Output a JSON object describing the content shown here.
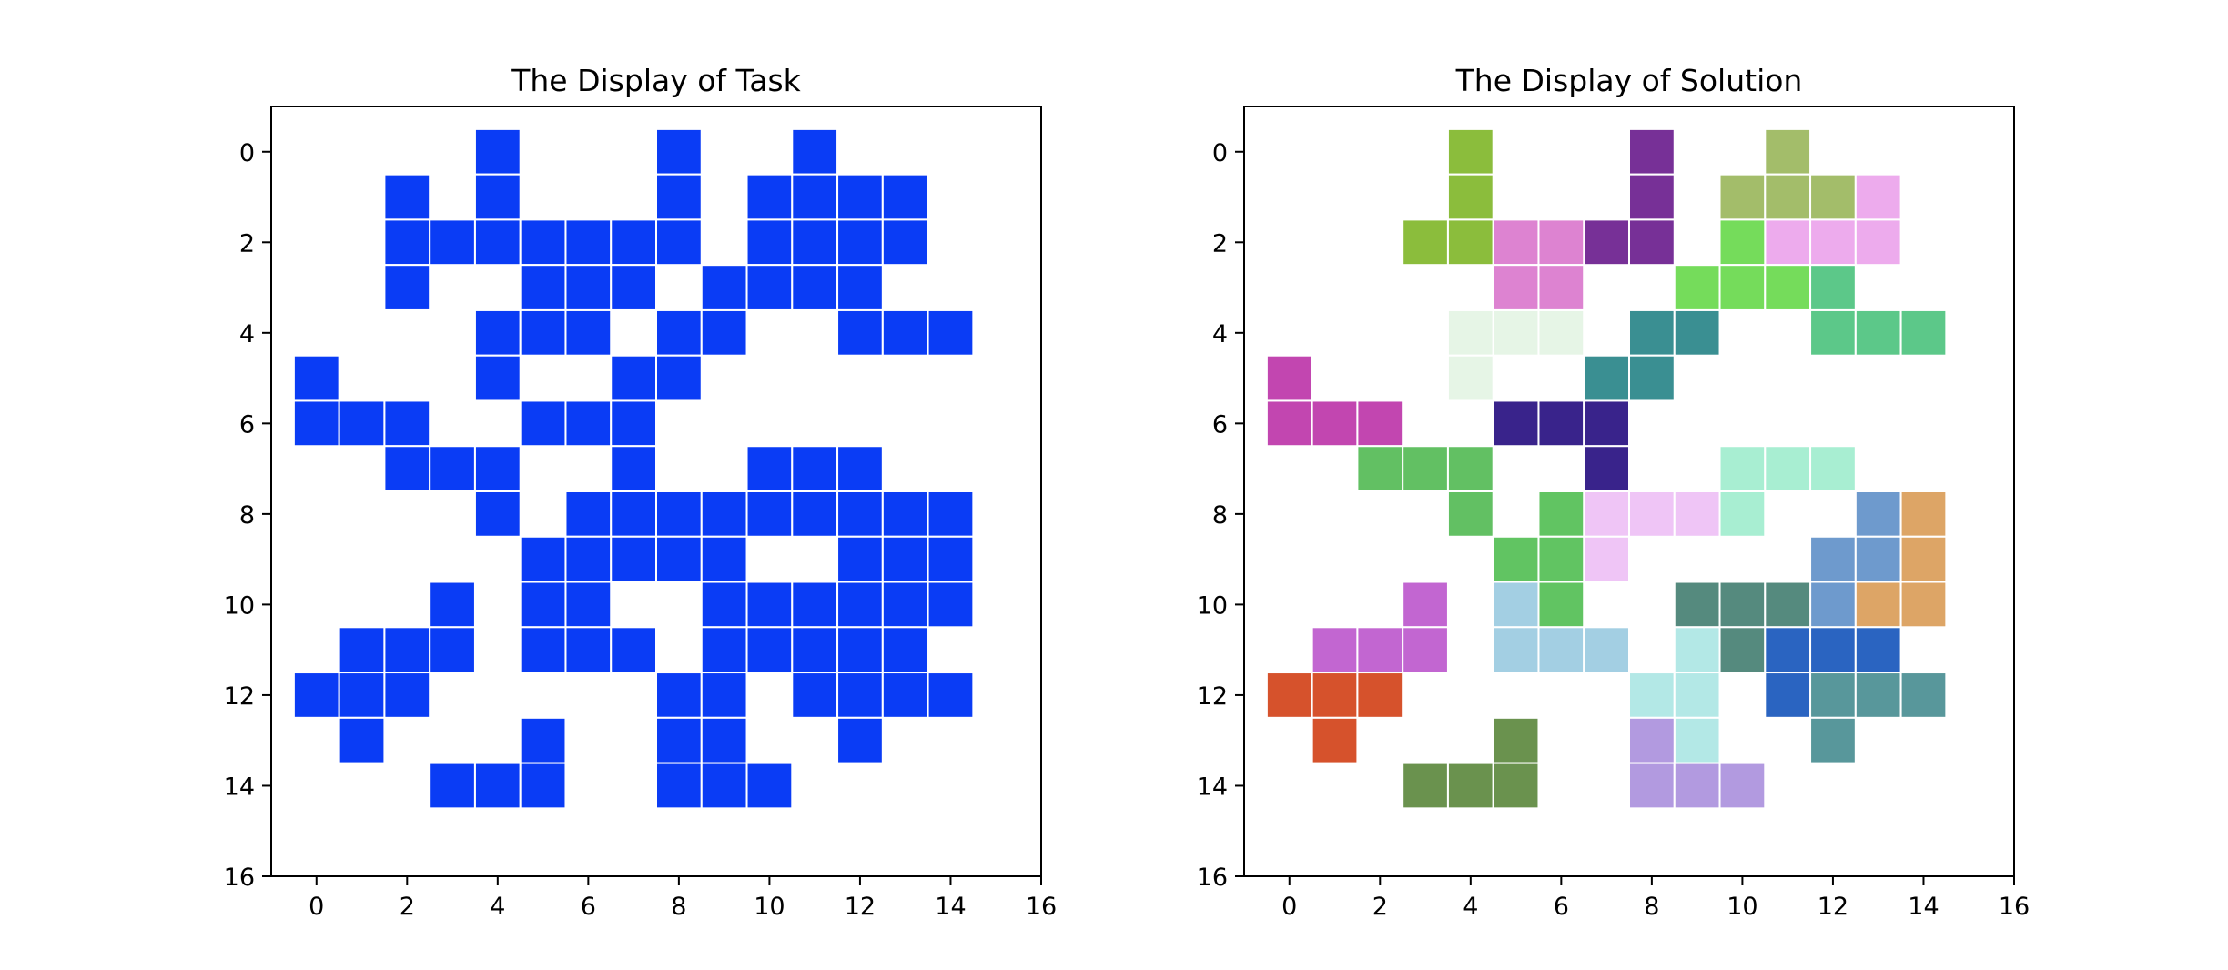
{
  "chart_data": [
    {
      "type": "heatmap",
      "title": "The Display of Task",
      "xticks": [
        "0",
        "2",
        "4",
        "6",
        "8",
        "10",
        "12",
        "14",
        "16"
      ],
      "yticks": [
        "0",
        "2",
        "4",
        "6",
        "8",
        "10",
        "12",
        "14",
        "16"
      ],
      "xlim": [
        -1,
        16
      ],
      "ylim": [
        16,
        -1
      ],
      "cell_color": "#0a3cf5",
      "grid_line_color": "#ffffff",
      "cells": [
        {
          "row": 0,
          "cols": [
            4,
            8,
            11
          ]
        },
        {
          "row": 1,
          "cols": [
            2,
            4,
            8,
            10,
            11,
            12,
            13
          ]
        },
        {
          "row": 2,
          "cols": [
            2,
            3,
            4,
            5,
            6,
            7,
            8,
            10,
            11,
            12,
            13
          ]
        },
        {
          "row": 3,
          "cols": [
            2,
            5,
            6,
            7,
            9,
            10,
            11,
            12
          ]
        },
        {
          "row": 4,
          "cols": [
            4,
            5,
            6,
            8,
            9,
            12,
            13,
            14
          ]
        },
        {
          "row": 5,
          "cols": [
            0,
            4,
            7,
            8
          ]
        },
        {
          "row": 6,
          "cols": [
            0,
            1,
            2,
            5,
            6,
            7
          ]
        },
        {
          "row": 7,
          "cols": [
            2,
            3,
            4,
            7,
            10,
            11,
            12
          ]
        },
        {
          "row": 8,
          "cols": [
            4,
            6,
            7,
            8,
            9,
            10,
            11,
            12,
            13,
            14
          ]
        },
        {
          "row": 9,
          "cols": [
            5,
            6,
            7,
            8,
            9,
            12,
            13,
            14
          ]
        },
        {
          "row": 10,
          "cols": [
            3,
            5,
            6,
            9,
            10,
            11,
            12,
            13,
            14
          ]
        },
        {
          "row": 11,
          "cols": [
            1,
            2,
            3,
            5,
            6,
            7,
            9,
            10,
            11,
            12,
            13
          ]
        },
        {
          "row": 12,
          "cols": [
            0,
            1,
            2,
            8,
            9,
            11,
            12,
            13,
            14
          ]
        },
        {
          "row": 13,
          "cols": [
            1,
            5,
            8,
            9,
            12
          ]
        },
        {
          "row": 14,
          "cols": [
            3,
            4,
            5,
            8,
            9,
            10
          ]
        }
      ]
    },
    {
      "type": "heatmap",
      "title": "The Display of Solution",
      "xticks": [
        "0",
        "2",
        "4",
        "6",
        "8",
        "10",
        "12",
        "14",
        "16"
      ],
      "yticks": [
        "0",
        "2",
        "4",
        "6",
        "8",
        "10",
        "12",
        "14",
        "16"
      ],
      "xlim": [
        -1,
        16
      ],
      "ylim": [
        16,
        -1
      ],
      "grid_line_color": "#ffffff",
      "pieces": [
        {
          "color": "#8bbd3c",
          "cells": [
            [
              0,
              4
            ],
            [
              1,
              4
            ],
            [
              2,
              3
            ],
            [
              2,
              4
            ]
          ]
        },
        {
          "color": "#773097",
          "cells": [
            [
              0,
              8
            ],
            [
              1,
              8
            ],
            [
              2,
              7
            ],
            [
              2,
              8
            ]
          ]
        },
        {
          "color": "#a3bd6a",
          "cells": [
            [
              0,
              11
            ],
            [
              1,
              10
            ],
            [
              1,
              11
            ],
            [
              1,
              12
            ]
          ]
        },
        {
          "color": "#edabed",
          "cells": [
            [
              1,
              13
            ],
            [
              2,
              11
            ],
            [
              2,
              12
            ],
            [
              2,
              13
            ]
          ]
        },
        {
          "color": "#dd83d1",
          "cells": [
            [
              2,
              5
            ],
            [
              2,
              6
            ],
            [
              3,
              5
            ],
            [
              3,
              6
            ]
          ]
        },
        {
          "color": "#75dc5b",
          "cells": [
            [
              2,
              10
            ],
            [
              3,
              9
            ],
            [
              3,
              10
            ],
            [
              3,
              11
            ]
          ]
        },
        {
          "color": "#5cc889",
          "cells": [
            [
              3,
              12
            ],
            [
              4,
              12
            ],
            [
              4,
              13
            ],
            [
              4,
              14
            ]
          ]
        },
        {
          "color": "#e6f5e6",
          "cells": [
            [
              4,
              4
            ],
            [
              4,
              5
            ],
            [
              4,
              6
            ],
            [
              5,
              4
            ]
          ]
        },
        {
          "color": "#3a8f92",
          "cells": [
            [
              4,
              8
            ],
            [
              4,
              9
            ],
            [
              5,
              7
            ],
            [
              5,
              8
            ]
          ]
        },
        {
          "color": "#c246b0",
          "cells": [
            [
              5,
              0
            ],
            [
              6,
              0
            ],
            [
              6,
              1
            ],
            [
              6,
              2
            ]
          ]
        },
        {
          "color": "#39238b",
          "cells": [
            [
              6,
              5
            ],
            [
              6,
              6
            ],
            [
              6,
              7
            ],
            [
              7,
              7
            ]
          ]
        },
        {
          "color": "#62c063",
          "cells": [
            [
              7,
              2
            ],
            [
              7,
              3
            ],
            [
              7,
              4
            ],
            [
              8,
              4
            ]
          ]
        },
        {
          "color": "#a8eed2",
          "cells": [
            [
              7,
              10
            ],
            [
              7,
              11
            ],
            [
              7,
              12
            ],
            [
              8,
              10
            ]
          ]
        },
        {
          "color": "#efc5f6",
          "cells": [
            [
              8,
              7
            ],
            [
              8,
              8
            ],
            [
              8,
              9
            ],
            [
              9,
              7
            ]
          ]
        },
        {
          "color": "#61c462",
          "cells": [
            [
              8,
              6
            ],
            [
              9,
              5
            ],
            [
              9,
              6
            ],
            [
              10,
              6
            ]
          ]
        },
        {
          "color": "#6e9acd",
          "cells": [
            [
              8,
              13
            ],
            [
              9,
              12
            ],
            [
              9,
              13
            ],
            [
              10,
              12
            ]
          ]
        },
        {
          "color": "#dda566",
          "cells": [
            [
              8,
              14
            ],
            [
              9,
              14
            ],
            [
              10,
              13
            ],
            [
              10,
              14
            ]
          ]
        },
        {
          "color": "#c266d1",
          "cells": [
            [
              10,
              3
            ],
            [
              11,
              1
            ],
            [
              11,
              2
            ],
            [
              11,
              3
            ]
          ]
        },
        {
          "color": "#a3cfe3",
          "cells": [
            [
              10,
              5
            ],
            [
              11,
              5
            ],
            [
              11,
              6
            ],
            [
              11,
              7
            ]
          ]
        },
        {
          "color": "#558a7e",
          "cells": [
            [
              10,
              9
            ],
            [
              10,
              10
            ],
            [
              10,
              11
            ],
            [
              11,
              10
            ]
          ]
        },
        {
          "color": "#2a64c1",
          "cells": [
            [
              11,
              11
            ],
            [
              11,
              12
            ],
            [
              11,
              13
            ],
            [
              12,
              11
            ]
          ]
        },
        {
          "color": "#b3e8e6",
          "cells": [
            [
              11,
              9
            ],
            [
              12,
              8
            ],
            [
              12,
              9
            ],
            [
              13,
              9
            ]
          ]
        },
        {
          "color": "#d6522c",
          "cells": [
            [
              12,
              0
            ],
            [
              12,
              1
            ],
            [
              12,
              2
            ],
            [
              13,
              1
            ]
          ]
        },
        {
          "color": "#58979b",
          "cells": [
            [
              12,
              12
            ],
            [
              12,
              13
            ],
            [
              12,
              14
            ],
            [
              13,
              12
            ]
          ]
        },
        {
          "color": "#6a924e",
          "cells": [
            [
              13,
              5
            ],
            [
              14,
              3
            ],
            [
              14,
              4
            ],
            [
              14,
              5
            ]
          ]
        },
        {
          "color": "#b29ae0",
          "cells": [
            [
              13,
              8
            ],
            [
              14,
              8
            ],
            [
              14,
              9
            ],
            [
              14,
              10
            ]
          ]
        }
      ]
    }
  ]
}
